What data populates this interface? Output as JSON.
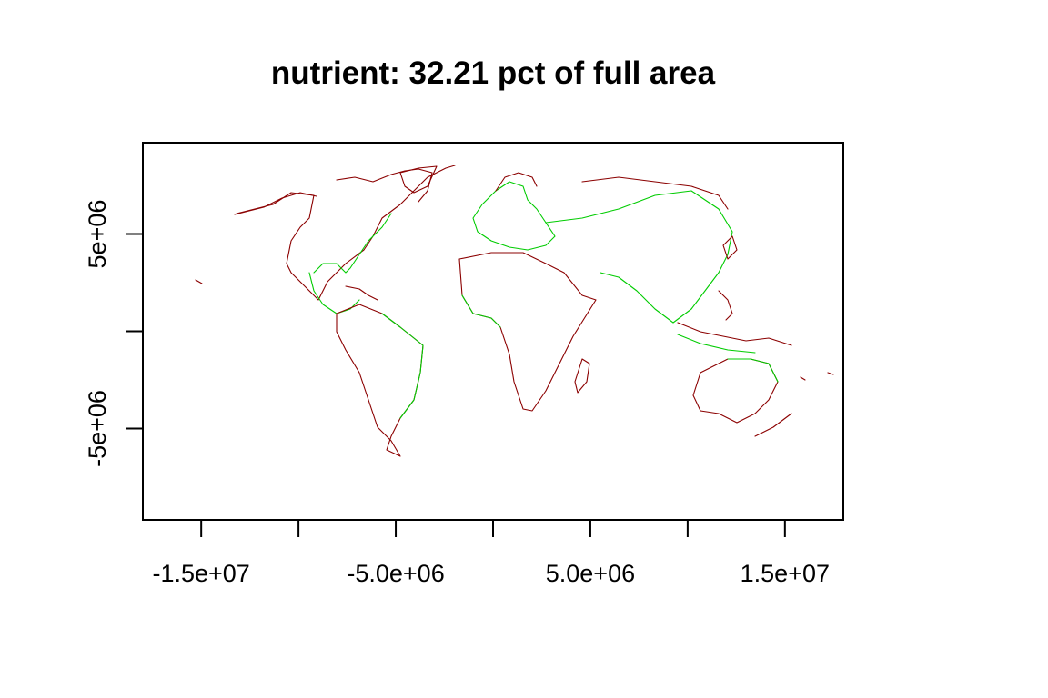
{
  "title": "nutrient: 32.21 pct of full area",
  "colors": {
    "frame": "#000000",
    "coast_red": "#8b0000",
    "coast_green": "#00cc00",
    "background": "#ffffff"
  },
  "chart_data": {
    "type": "map",
    "title": "nutrient: 32.21 pct of full area",
    "xlim": [
      -18000000,
      18000000
    ],
    "ylim": [
      -9700000,
      9700000
    ],
    "x_ticks": [
      {
        "value": -15000000,
        "label": "-1.5e+07"
      },
      {
        "value": -10000000,
        "label": ""
      },
      {
        "value": -5000000,
        "label": "-5.0e+06"
      },
      {
        "value": 0,
        "label": ""
      },
      {
        "value": 5000000,
        "label": "5.0e+06"
      },
      {
        "value": 10000000,
        "label": ""
      },
      {
        "value": 15000000,
        "label": "1.5e+07"
      }
    ],
    "y_ticks": [
      {
        "value": 5000000,
        "label": "5e+06"
      },
      {
        "value": 0,
        "label": ""
      },
      {
        "value": -5000000,
        "label": "-5e+06"
      }
    ],
    "legend": "none",
    "grid": false
  }
}
